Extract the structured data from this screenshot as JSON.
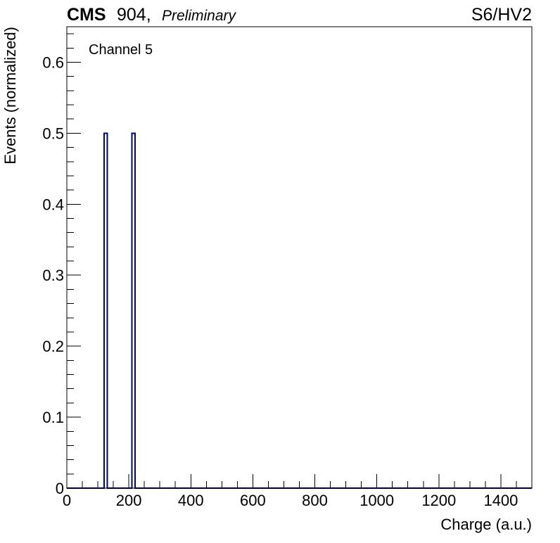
{
  "header": {
    "experiment": "CMS",
    "site": "904,",
    "status": "Preliminary",
    "tag": "S6/HV2"
  },
  "annotation": "Channel 5",
  "colors": {
    "series": "#00008b",
    "axis": "#000000",
    "background": "#ffffff"
  },
  "chart_data": {
    "type": "bar",
    "title": "",
    "xlabel": "Charge (a.u.)",
    "ylabel": "Events (normalized)",
    "xlim": [
      0,
      1500
    ],
    "ylim": [
      0,
      0.65
    ],
    "x_major_ticks": [
      0,
      200,
      400,
      600,
      800,
      1000,
      1200,
      1400
    ],
    "x_tick_labels": [
      "0",
      "200",
      "400",
      "600",
      "800",
      "1000",
      "1200",
      "1400"
    ],
    "y_major_ticks": [
      0,
      0.1,
      0.2,
      0.3,
      0.4,
      0.5,
      0.6
    ],
    "y_tick_labels": [
      "0",
      "0.1",
      "0.2",
      "0.3",
      "0.4",
      "0.5",
      "0.6"
    ],
    "grid": false,
    "bins": [
      {
        "low": 120,
        "high": 130,
        "value": 0.5
      },
      {
        "low": 210,
        "high": 220,
        "value": 0.5
      }
    ]
  }
}
